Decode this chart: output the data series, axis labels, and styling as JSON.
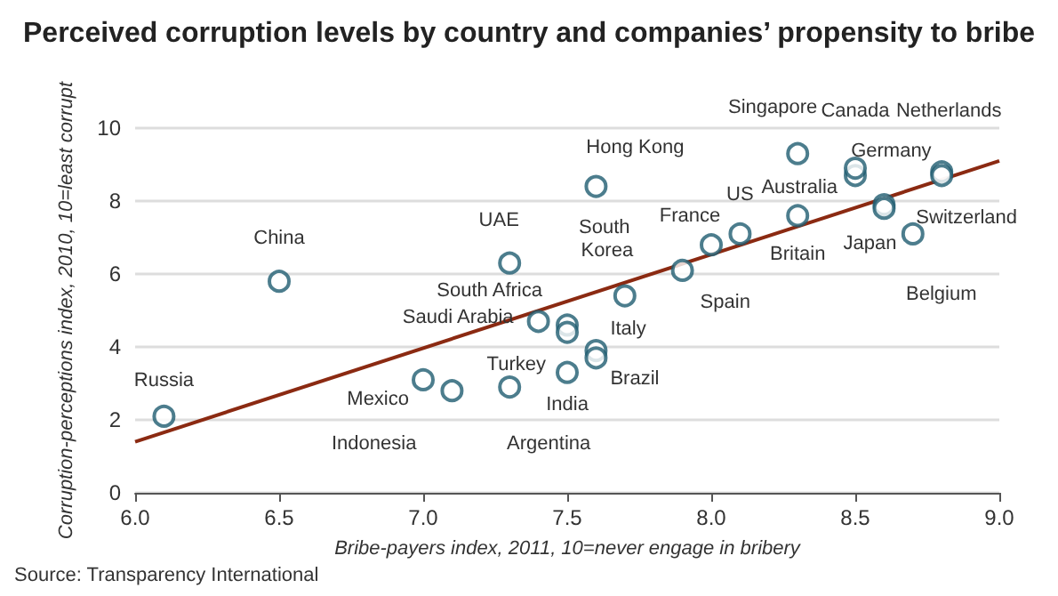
{
  "chart_data": {
    "type": "scatter",
    "title": "Perceived corruption levels by country and companies’ propensity to bribe",
    "xlabel": "Bribe-payers index, 2011, 10=never engage in bribery",
    "ylabel": "Corruption-perceptions index, 2010, 10=least corrupt",
    "xlim": [
      6.0,
      9.0
    ],
    "xticks": [
      {
        "value": 6.0,
        "label": "6.0"
      },
      {
        "value": 6.5,
        "label": "6.5"
      },
      {
        "value": 7.0,
        "label": "7.0"
      },
      {
        "value": 7.5,
        "label": "7.5"
      },
      {
        "value": 8.0,
        "label": "8.0"
      },
      {
        "value": 8.5,
        "label": "8.5"
      },
      {
        "value": 9.0,
        "label": "9.0"
      }
    ],
    "ylim": [
      0,
      10
    ],
    "yticks": [
      0,
      2,
      4,
      6,
      8,
      10
    ],
    "grid": "y",
    "marker": "circle",
    "series": [
      {
        "color": "#1f5d70",
        "x": [
          6.1,
          6.5,
          7.3,
          7.4,
          7.5,
          7.5,
          7.0,
          7.1,
          7.3,
          7.5,
          7.6,
          7.6,
          7.6,
          7.7,
          7.9,
          8.0,
          8.1,
          8.3,
          8.3,
          8.5,
          8.5,
          8.6,
          8.6,
          8.7,
          8.8,
          8.8
        ],
        "values": [
          2.1,
          5.8,
          6.3,
          4.7,
          4.6,
          4.4,
          3.1,
          2.8,
          2.9,
          3.3,
          3.9,
          3.7,
          8.4,
          5.4,
          6.1,
          6.8,
          7.1,
          7.6,
          9.3,
          8.7,
          8.9,
          7.9,
          7.8,
          7.1,
          8.8,
          8.7
        ]
      },
      {
        "type": "line",
        "color": "#8b2a12",
        "marker": "none",
        "line_style": "solid",
        "x": [
          6.0,
          9.0
        ],
        "values": [
          1.4,
          9.1
        ]
      }
    ],
    "annotations": [
      {
        "text": "Russia",
        "x": 6.1,
        "y": 2.1
      },
      {
        "text": "China",
        "x": 6.5,
        "y": 5.8
      },
      {
        "text": "UAE",
        "x": 7.3,
        "y": 6.3
      },
      {
        "text": "Saudi Arabia",
        "x": 7.4,
        "y": 4.7
      },
      {
        "text": "South Africa",
        "x": 7.5,
        "y": 4.6
      },
      {
        "text": "Turkey",
        "x": 7.5,
        "y": 4.4
      },
      {
        "text": "Mexico",
        "x": 7.0,
        "y": 3.1
      },
      {
        "text": "Indonesia",
        "x": 7.1,
        "y": 2.8
      },
      {
        "text": "Argentina",
        "x": 7.3,
        "y": 2.9
      },
      {
        "text": "India",
        "x": 7.5,
        "y": 3.3
      },
      {
        "text": "Italy",
        "x": 7.6,
        "y": 3.9
      },
      {
        "text": "Brazil",
        "x": 7.6,
        "y": 3.7
      },
      {
        "text": "Hong Kong",
        "x": 7.6,
        "y": 8.4
      },
      {
        "text": "South Korea",
        "x": 7.7,
        "y": 5.4
      },
      {
        "text": "Spain",
        "x": 7.9,
        "y": 6.1
      },
      {
        "text": "France",
        "x": 8.0,
        "y": 6.8
      },
      {
        "text": "US",
        "x": 8.1,
        "y": 7.1
      },
      {
        "text": "Britain",
        "x": 8.3,
        "y": 7.6
      },
      {
        "text": "Singapore",
        "x": 8.3,
        "y": 9.3
      },
      {
        "text": "Australia",
        "x": 8.5,
        "y": 8.7
      },
      {
        "text": "Canada",
        "x": 8.5,
        "y": 8.9
      },
      {
        "text": "Germany",
        "x": 8.6,
        "y": 7.9
      },
      {
        "text": "Japan",
        "x": 8.6,
        "y": 7.8
      },
      {
        "text": "Belgium",
        "x": 8.7,
        "y": 7.1
      },
      {
        "text": "Netherlands",
        "x": 8.8,
        "y": 8.8
      },
      {
        "text": "Switzerland",
        "x": 8.8,
        "y": 8.7
      },
      "Source: Transparency International"
    ]
  }
}
